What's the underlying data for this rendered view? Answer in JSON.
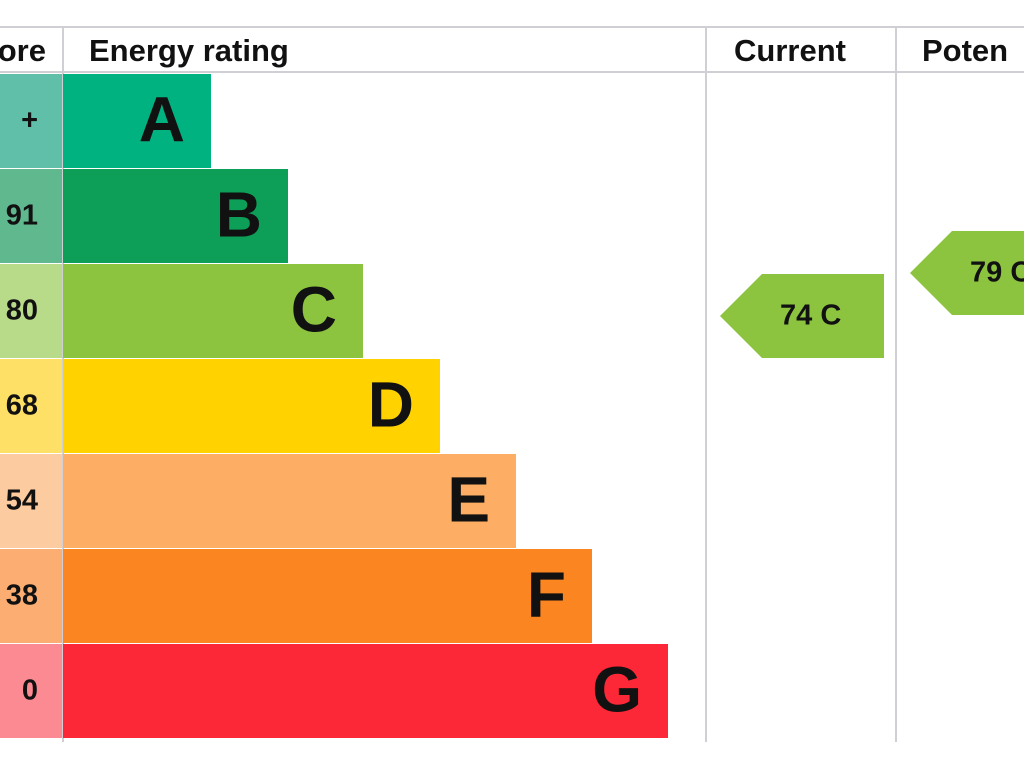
{
  "header": {
    "score": "ore",
    "rating": "Energy rating",
    "current": "Current",
    "potential": "Poten"
  },
  "colors": {
    "band_color": "#8cc33f",
    "grid": "#cfcfd4"
  },
  "chart_data": {
    "type": "bar",
    "categories": [
      "A",
      "B",
      "C",
      "D",
      "E",
      "F",
      "G"
    ],
    "score_labels": [
      "+",
      "91",
      "80",
      "68",
      "54",
      "38",
      "0"
    ],
    "bars": [
      {
        "letter": "A",
        "color": "#00b27f",
        "score_color": "#5fbfa8",
        "width_rank": 1
      },
      {
        "letter": "B",
        "color": "#0d9e57",
        "score_color": "#5fb88e",
        "width_rank": 2
      },
      {
        "letter": "C",
        "color": "#8cc33f",
        "score_color": "#b8db8a",
        "width_rank": 3
      },
      {
        "letter": "D",
        "color": "#ffd200",
        "score_color": "#ffe066",
        "width_rank": 4
      },
      {
        "letter": "E",
        "color": "#fdae64",
        "score_color": "#fdcba0",
        "width_rank": 5
      },
      {
        "letter": "F",
        "color": "#fb8520",
        "score_color": "#fcae72",
        "width_rank": 6
      },
      {
        "letter": "G",
        "color": "#fc2737",
        "score_color": "#fc8a92",
        "width_rank": 7
      }
    ],
    "current": {
      "value": 74,
      "band": "C",
      "label": "74 C"
    },
    "potential": {
      "value": 79,
      "band": "C",
      "label": "79 C"
    }
  }
}
